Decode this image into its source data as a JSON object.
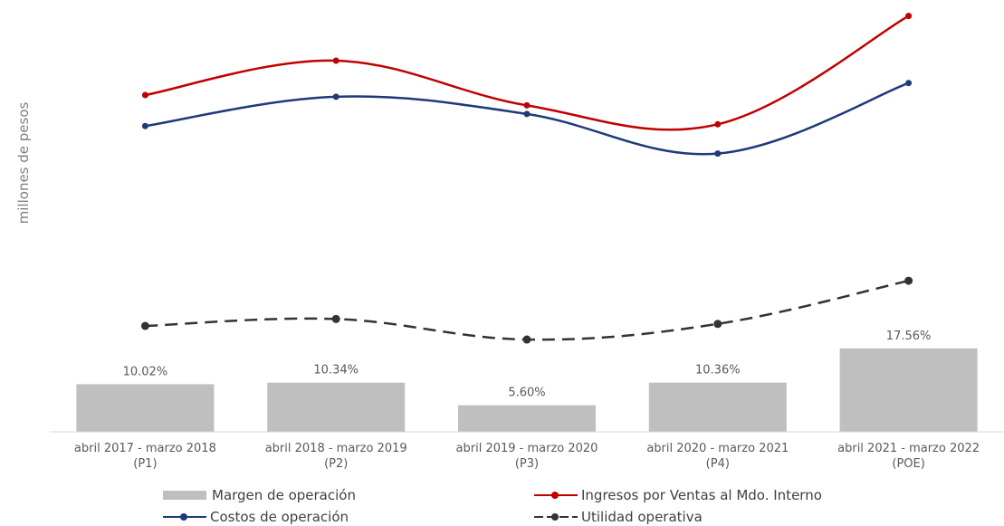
{
  "chart_data": {
    "type": "bar+line",
    "title": "",
    "ylabel": "millones de pesos",
    "categories": [
      [
        "abril 2017 - marzo 2018",
        "(P1)"
      ],
      [
        "abril 2018 - marzo 2019",
        "(P2)"
      ],
      [
        "abril 2019 - marzo 2020",
        "(P3)"
      ],
      [
        "abril 2020 - marzo 2021",
        "(P4)"
      ],
      [
        "abril 2021 - marzo 2022",
        "(POE)"
      ]
    ],
    "bars": {
      "name": "Margen de operación",
      "values": [
        10.02,
        10.34,
        5.6,
        10.36,
        17.56
      ],
      "labels": [
        "10.02%",
        "10.34%",
        "5.60%",
        "10.36%",
        "17.56%"
      ],
      "color": "#bfbfbf"
    },
    "lines": [
      {
        "name": "Ingresos por Ventas al Mdo. Interno",
        "values": [
          100,
          120,
          94,
          83,
          146
        ],
        "color": "#c00000",
        "style": "solid"
      },
      {
        "name": "Costos de operación",
        "values": [
          82,
          99,
          89,
          66,
          107
        ],
        "color": "#1f3a7a",
        "style": "solid"
      },
      {
        "name": "Utilidad operativa",
        "values": [
          10.0,
          12.4,
          5.3,
          10.7,
          25.6
        ],
        "color": "#333333",
        "style": "dashed"
      }
    ],
    "grid": false,
    "legend_position": "bottom"
  },
  "legend": {
    "bars": "Margen de operación",
    "ingresos": "Ingresos por Ventas al Mdo. Interno",
    "costos": "Costos de operación",
    "utilidad": "Utilidad operativa"
  }
}
